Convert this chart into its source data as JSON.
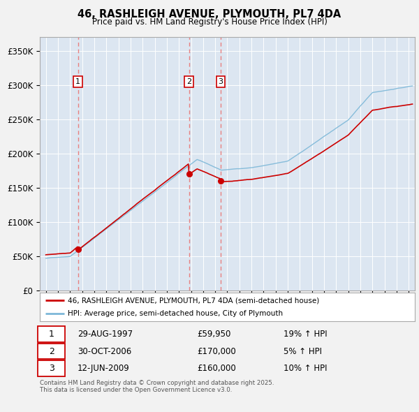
{
  "title": "46, RASHLEIGH AVENUE, PLYMOUTH, PL7 4DA",
  "subtitle": "Price paid vs. HM Land Registry's House Price Index (HPI)",
  "bg_color": "#dce6f1",
  "grid_color": "#ffffff",
  "ylim": [
    0,
    370000
  ],
  "yticks": [
    0,
    50000,
    100000,
    150000,
    200000,
    250000,
    300000,
    350000
  ],
  "ytick_labels": [
    "£0",
    "£50K",
    "£100K",
    "£150K",
    "£200K",
    "£250K",
    "£300K",
    "£350K"
  ],
  "xlim_start": 1994.5,
  "xlim_end": 2025.5,
  "sale_dates": [
    1997.66,
    2006.83,
    2009.45
  ],
  "sale_prices": [
    59950,
    170000,
    160000
  ],
  "sale_labels": [
    "1",
    "2",
    "3"
  ],
  "table_rows": [
    [
      "1",
      "29-AUG-1997",
      "£59,950",
      "19% ↑ HPI"
    ],
    [
      "2",
      "30-OCT-2006",
      "£170,000",
      "5% ↑ HPI"
    ],
    [
      "3",
      "12-JUN-2009",
      "£160,000",
      "10% ↑ HPI"
    ]
  ],
  "legend_line1": "46, RASHLEIGH AVENUE, PLYMOUTH, PL7 4DA (semi-detached house)",
  "legend_line2": "HPI: Average price, semi-detached house, City of Plymouth",
  "footer": "Contains HM Land Registry data © Crown copyright and database right 2025.\nThis data is licensed under the Open Government Licence v3.0.",
  "hpi_color": "#7db8d8",
  "price_color": "#cc0000",
  "vline_color": "#e88080",
  "fig_bg": "#f2f2f2"
}
